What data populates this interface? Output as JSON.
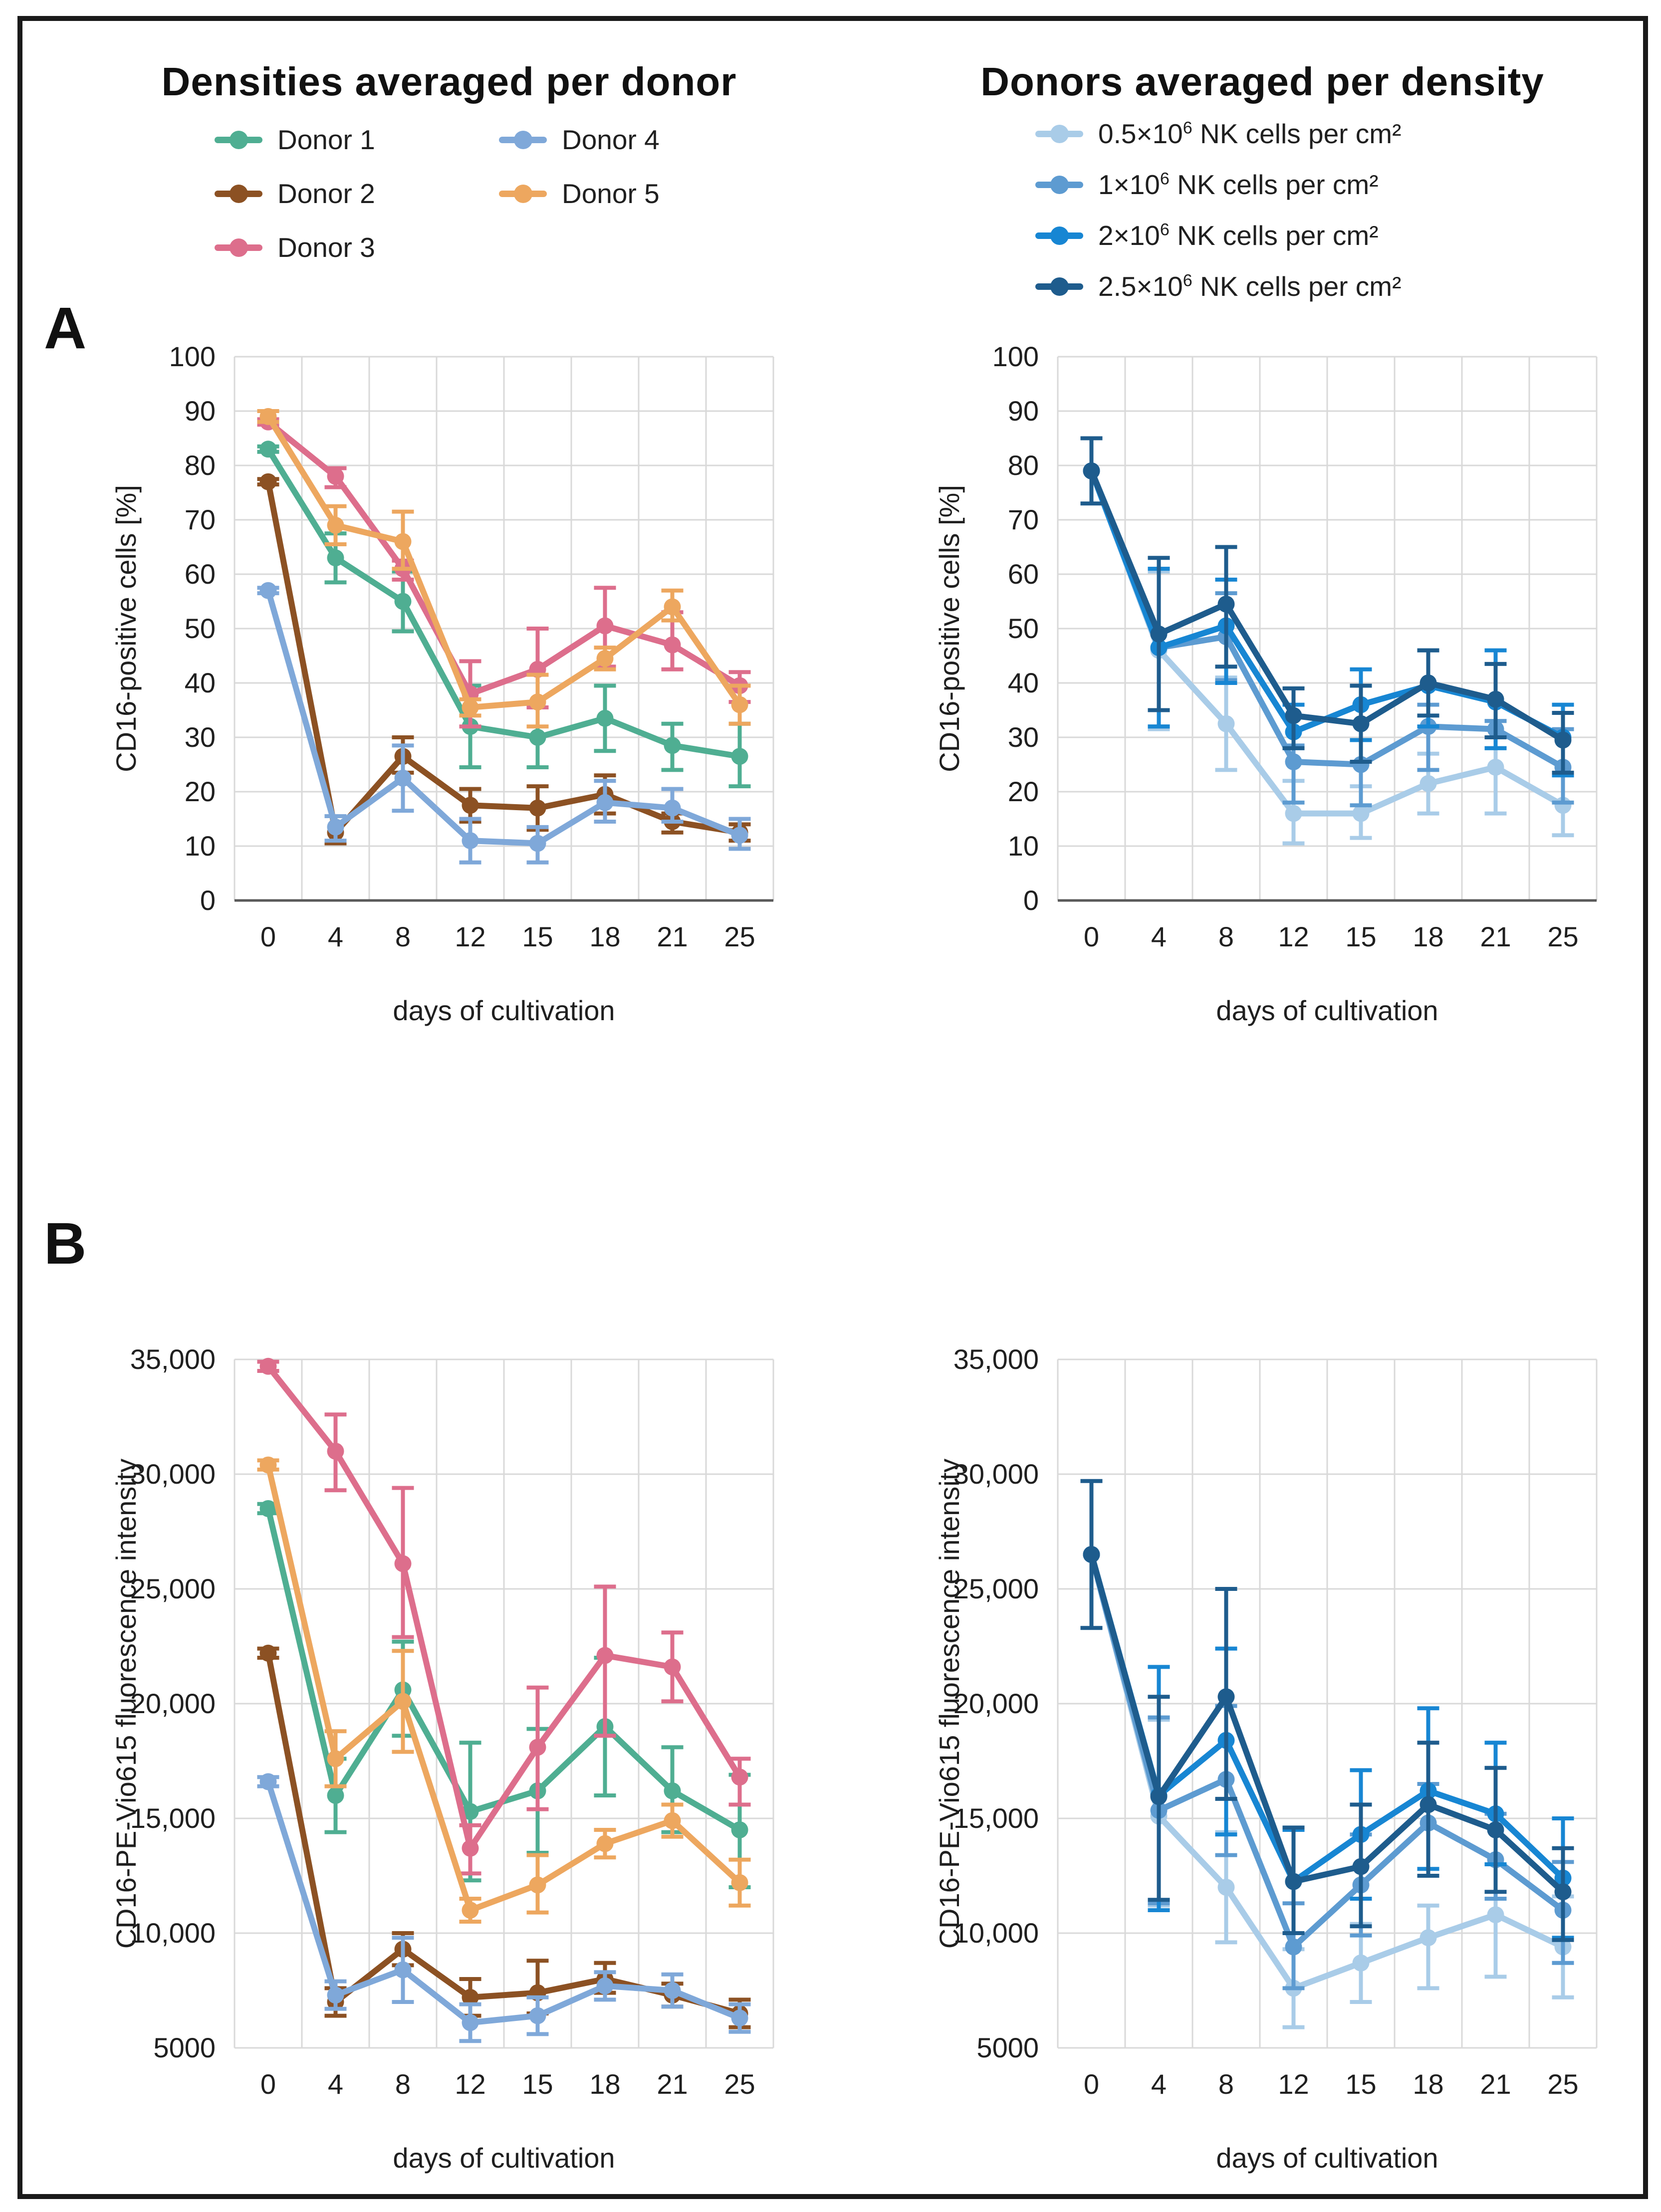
{
  "header": {
    "left_title": "Densities averaged per donor",
    "right_title": "Donors averaged per density"
  },
  "panel_labels": {
    "a": "A",
    "b": "B"
  },
  "colors": {
    "grid": "#D9D9D9",
    "axis_dark": "#595959",
    "text": "#1f1f1f",
    "donor1": "#4FAE92",
    "donor2": "#8C5123",
    "donor3": "#DD6E8C",
    "donor4": "#7FA8D9",
    "donor5": "#EDA75F",
    "density05": "#A9CCE8",
    "density1": "#5D9BD1",
    "density2": "#1786D3",
    "density25": "#1E5C8D"
  },
  "legend_left": {
    "items": [
      {
        "label": "Donor 1",
        "color": "#4FAE92"
      },
      {
        "label": "Donor 2",
        "color": "#8C5123"
      },
      {
        "label": "Donor 3",
        "color": "#DD6E8C"
      },
      {
        "label": "Donor 4",
        "color": "#7FA8D9"
      },
      {
        "label": "Donor 5",
        "color": "#EDA75F"
      }
    ]
  },
  "legend_right": {
    "items": [
      {
        "pre": "0.5×10",
        "sup": "6",
        "post": " NK cells per cm²",
        "color": "#A9CCE8"
      },
      {
        "pre": "1×10",
        "sup": "6",
        "post": " NK cells per cm²",
        "color": "#5D9BD1"
      },
      {
        "pre": "2×10",
        "sup": "6",
        "post": " NK cells per cm²",
        "color": "#1786D3"
      },
      {
        "pre": "2.5×10",
        "sup": "6",
        "post": " NK cells per cm²",
        "color": "#1E5C8D"
      }
    ]
  },
  "chart_data": [
    {
      "type": "line",
      "panel": "A",
      "side": "left",
      "title": "Densities averaged per donor",
      "x": [
        0,
        4,
        8,
        12,
        15,
        18,
        21,
        25
      ],
      "xlabel": "days of cultivation",
      "ylabel": "CD16-positive cells [%]",
      "ylim": [
        0,
        100
      ],
      "ytick_step": 10,
      "ytick_labels": [
        "0",
        "10",
        "20",
        "30",
        "40",
        "50",
        "60",
        "70",
        "80",
        "90",
        "100"
      ],
      "grid": true,
      "dark_baseline": true,
      "legend_position": "top",
      "series": [
        {
          "name": "Donor 1",
          "color": "#4FAE92",
          "values": [
            83,
            63,
            55,
            32,
            30,
            33.5,
            28.5,
            26.5
          ],
          "err_lo": [
            82.5,
            58.5,
            49.5,
            24.5,
            24.5,
            27.5,
            24,
            21
          ],
          "err_hi": [
            83.5,
            67.5,
            60.5,
            39.5,
            35.5,
            39.5,
            32.5,
            32.5
          ]
        },
        {
          "name": "Donor 2",
          "color": "#8C5123",
          "values": [
            77,
            12.5,
            26.5,
            17.5,
            17,
            19.5,
            14.5,
            12.5
          ],
          "err_lo": [
            76.5,
            10.5,
            23.5,
            14.5,
            13,
            16,
            12.5,
            11
          ],
          "err_hi": [
            77.5,
            15.5,
            30,
            20.5,
            21,
            23,
            16,
            14
          ]
        },
        {
          "name": "Donor 3",
          "color": "#DD6E8C",
          "values": [
            88,
            78,
            61,
            38,
            42.5,
            50.5,
            47,
            39.5
          ],
          "err_lo": [
            87.5,
            76,
            59,
            32,
            35.5,
            43,
            42.5,
            36.5
          ],
          "err_hi": [
            88.5,
            79.5,
            62.5,
            44,
            50,
            57.5,
            53,
            42
          ]
        },
        {
          "name": "Donor 4",
          "color": "#7FA8D9",
          "values": [
            57,
            13.5,
            22.5,
            11,
            10.5,
            18,
            17,
            12
          ],
          "err_lo": [
            56.5,
            11,
            16.5,
            7,
            7,
            14.5,
            14.5,
            9.5
          ],
          "err_hi": [
            57.5,
            15.5,
            28.5,
            15,
            13.5,
            22,
            20.5,
            15
          ]
        },
        {
          "name": "Donor 5",
          "color": "#EDA75F",
          "values": [
            89,
            69,
            66,
            35.5,
            36.5,
            44.5,
            54,
            36
          ],
          "err_lo": [
            88,
            65.5,
            61,
            34,
            32,
            42.5,
            51.5,
            32.5
          ],
          "err_hi": [
            90,
            72.5,
            71.5,
            37,
            41.5,
            46.5,
            57,
            39.5
          ]
        }
      ]
    },
    {
      "type": "line",
      "panel": "A",
      "side": "right",
      "title": "Donors averaged per density",
      "x": [
        0,
        4,
        8,
        12,
        15,
        18,
        21,
        25
      ],
      "xlabel": "days of cultivation",
      "ylabel": "CD16-positive cells [%]",
      "ylim": [
        0,
        100
      ],
      "ytick_step": 10,
      "ytick_labels": [
        "0",
        "10",
        "20",
        "30",
        "40",
        "50",
        "60",
        "70",
        "80",
        "90",
        "100"
      ],
      "grid": true,
      "dark_baseline": true,
      "legend_position": "top",
      "series": [
        {
          "name": "0.5×10⁶ NK cells per cm²",
          "color": "#A9CCE8",
          "values": [
            79,
            46,
            32.5,
            16,
            16,
            21.5,
            24.5,
            17.5
          ],
          "err_lo": [
            null,
            31.5,
            24,
            10.5,
            11.5,
            16,
            16,
            12
          ],
          "err_hi": [
            null,
            60.5,
            41,
            22,
            21,
            27,
            33,
            23
          ]
        },
        {
          "name": "1×10⁶ NK cells per cm²",
          "color": "#5D9BD1",
          "values": [
            79,
            46.5,
            48.5,
            25.5,
            25,
            32,
            31.5,
            24.5
          ],
          "err_lo": [
            null,
            32,
            40.5,
            18,
            17.5,
            24,
            28,
            18
          ],
          "err_hi": [
            null,
            61,
            56.5,
            28.5,
            29.5,
            36,
            33,
            31.5
          ]
        },
        {
          "name": "2×10⁶ NK cells per cm²",
          "color": "#1786D3",
          "values": [
            79,
            46.5,
            50.5,
            31,
            36,
            39.5,
            36.5,
            30
          ],
          "err_lo": [
            null,
            32,
            40,
            28,
            29.5,
            32,
            28,
            23
          ],
          "err_hi": [
            null,
            61,
            59,
            36,
            42.5,
            46,
            46,
            36
          ]
        },
        {
          "name": "2.5×10⁶ NK cells per cm²",
          "color": "#1E5C8D",
          "values": [
            79,
            49,
            54.5,
            34,
            32.5,
            40,
            37,
            29.5
          ],
          "err_lo": [
            73,
            35,
            43,
            28,
            25.5,
            34,
            30,
            23.5
          ],
          "err_hi": [
            85,
            63,
            65,
            39,
            39.5,
            46,
            43.5,
            34.5
          ]
        }
      ]
    },
    {
      "type": "line",
      "panel": "B",
      "side": "left",
      "title": "Densities averaged per donor",
      "x": [
        0,
        4,
        8,
        12,
        15,
        18,
        21,
        25
      ],
      "xlabel": "days of cultivation",
      "ylabel": "CD16-PE-Vio615 fluorescence intensity",
      "ylim": [
        5000,
        35000
      ],
      "ytick_step": 5000,
      "ytick_labels": [
        "5000",
        "10,000",
        "15,000",
        "20,000",
        "25,000",
        "30,000",
        "35,000"
      ],
      "grid": true,
      "dark_baseline": false,
      "legend_position": "none",
      "series": [
        {
          "name": "Donor 1",
          "color": "#4FAE92",
          "values": [
            28500,
            16000,
            20600,
            15300,
            16200,
            19000,
            16200,
            14500
          ],
          "err_lo": [
            28300,
            14400,
            18600,
            12300,
            13500,
            16000,
            14400,
            12000
          ],
          "err_hi": [
            28700,
            17600,
            22700,
            18300,
            18900,
            22000,
            18100,
            16900
          ]
        },
        {
          "name": "Donor 2",
          "color": "#8C5123",
          "values": [
            22200,
            7000,
            9300,
            7200,
            7400,
            8000,
            7300,
            6500
          ],
          "err_lo": [
            22000,
            6400,
            8600,
            6400,
            6500,
            7400,
            6800,
            5900
          ],
          "err_hi": [
            22400,
            7600,
            10000,
            8000,
            8800,
            8700,
            7800,
            7100
          ]
        },
        {
          "name": "Donor 3",
          "color": "#DD6E8C",
          "values": [
            34700,
            31000,
            26100,
            13700,
            18100,
            22100,
            21600,
            16800
          ],
          "err_lo": [
            34500,
            29300,
            22900,
            12600,
            15400,
            18600,
            20100,
            15600
          ],
          "err_hi": [
            34900,
            32600,
            29400,
            14700,
            20700,
            25100,
            23100,
            17600
          ]
        },
        {
          "name": "Donor 4",
          "color": "#7FA8D9",
          "values": [
            16600,
            7300,
            8400,
            6100,
            6400,
            7700,
            7500,
            6300
          ],
          "err_lo": [
            16400,
            6700,
            7000,
            5300,
            5600,
            7100,
            6800,
            5700
          ],
          "err_hi": [
            16800,
            7900,
            9800,
            6900,
            7200,
            8300,
            8200,
            6900
          ]
        },
        {
          "name": "Donor 5",
          "color": "#EDA75F",
          "values": [
            30400,
            17600,
            20100,
            11000,
            12100,
            13900,
            14900,
            12200
          ],
          "err_lo": [
            30200,
            16400,
            17900,
            10500,
            10900,
            13300,
            14200,
            11200
          ],
          "err_hi": [
            30600,
            18800,
            22300,
            11500,
            13400,
            14500,
            15600,
            13200
          ]
        }
      ]
    },
    {
      "type": "line",
      "panel": "B",
      "side": "right",
      "title": "Donors averaged per density",
      "x": [
        0,
        4,
        8,
        12,
        15,
        18,
        21,
        25
      ],
      "xlabel": "days of cultivation",
      "ylabel": "CD16-PE-Vio615 fluorescence intensity",
      "ylim": [
        5000,
        35000
      ],
      "ytick_step": 5000,
      "ytick_labels": [
        "5000",
        "10,000",
        "15,000",
        "20,000",
        "25,000",
        "30,000",
        "35,000"
      ],
      "grid": true,
      "dark_baseline": false,
      "legend_position": "none",
      "series": [
        {
          "name": "0.5×10⁶ NK cells per cm²",
          "color": "#A9CCE8",
          "values": [
            26500,
            15100,
            12000,
            7600,
            8700,
            9800,
            10800,
            9400
          ],
          "err_lo": [
            null,
            11200,
            9600,
            5900,
            7000,
            7600,
            8100,
            7200
          ],
          "err_hi": [
            null,
            19300,
            14400,
            9300,
            10400,
            11200,
            13000,
            11600
          ]
        },
        {
          "name": "1×10⁶ NK cells per cm²",
          "color": "#5D9BD1",
          "values": [
            26500,
            15350,
            16700,
            9400,
            12100,
            14800,
            13200,
            11000
          ],
          "err_lo": [
            null,
            11300,
            13400,
            7600,
            9900,
            12500,
            11500,
            8700
          ],
          "err_hi": [
            null,
            19400,
            19900,
            11300,
            14300,
            16500,
            15200,
            13100
          ]
        },
        {
          "name": "2×10⁶ NK cells per cm²",
          "color": "#1786D3",
          "values": [
            26500,
            16000,
            18400,
            12250,
            14300,
            16200,
            15200,
            12400
          ],
          "err_lo": [
            null,
            11000,
            14300,
            10000,
            11500,
            12800,
            13000,
            9800
          ],
          "err_hi": [
            null,
            21600,
            22400,
            14500,
            17100,
            19800,
            18300,
            15000
          ]
        },
        {
          "name": "2.5×10⁶ NK cells per cm²",
          "color": "#1E5C8D",
          "values": [
            26500,
            15950,
            20300,
            12250,
            12900,
            15600,
            14500,
            11800
          ],
          "err_lo": [
            23300,
            11450,
            15850,
            10000,
            10300,
            12500,
            11800,
            9700
          ],
          "err_hi": [
            29700,
            20300,
            25000,
            14600,
            15600,
            18300,
            17200,
            13700
          ]
        }
      ]
    }
  ]
}
